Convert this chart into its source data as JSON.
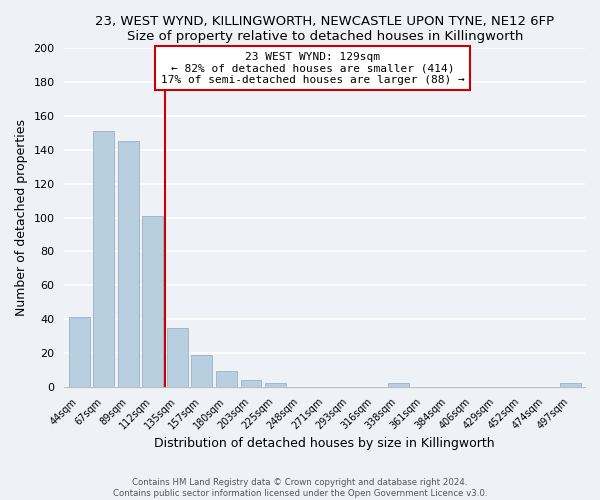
{
  "title_line1": "23, WEST WYND, KILLINGWORTH, NEWCASTLE UPON TYNE, NE12 6FP",
  "title_line2": "Size of property relative to detached houses in Killingworth",
  "xlabel": "Distribution of detached houses by size in Killingworth",
  "ylabel": "Number of detached properties",
  "bar_labels": [
    "44sqm",
    "67sqm",
    "89sqm",
    "112sqm",
    "135sqm",
    "157sqm",
    "180sqm",
    "203sqm",
    "225sqm",
    "248sqm",
    "271sqm",
    "293sqm",
    "316sqm",
    "338sqm",
    "361sqm",
    "384sqm",
    "406sqm",
    "429sqm",
    "452sqm",
    "474sqm",
    "497sqm"
  ],
  "bar_values": [
    41,
    151,
    145,
    101,
    35,
    19,
    9,
    4,
    2,
    0,
    0,
    0,
    0,
    2,
    0,
    0,
    0,
    0,
    0,
    0,
    2
  ],
  "bar_color": "#b8cfe0",
  "bar_edge_color": "#9ab0c8",
  "vline_color": "#cc0000",
  "annotation_title": "23 WEST WYND: 129sqm",
  "annotation_line2": "← 82% of detached houses are smaller (414)",
  "annotation_line3": "17% of semi-detached houses are larger (88) →",
  "annotation_box_color": "#ffffff",
  "annotation_box_edge": "#cc0000",
  "ylim": [
    0,
    200
  ],
  "yticks": [
    0,
    20,
    40,
    60,
    80,
    100,
    120,
    140,
    160,
    180,
    200
  ],
  "footer_line1": "Contains HM Land Registry data © Crown copyright and database right 2024.",
  "footer_line2": "Contains public sector information licensed under the Open Government Licence v3.0.",
  "background_color": "#eef2f7",
  "grid_color": "#ffffff",
  "title_fontsize": 9.5,
  "axis_label_fontsize": 9
}
